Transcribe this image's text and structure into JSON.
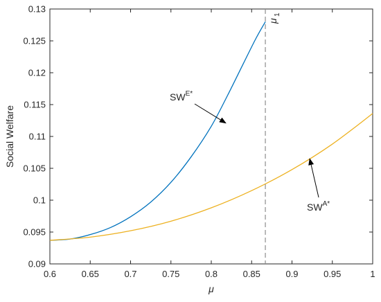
{
  "chart_data": {
    "type": "line",
    "xlabel": "μ",
    "ylabel": "Social Welfare",
    "xlim": [
      0.6,
      1.0
    ],
    "ylim": [
      0.09,
      0.13
    ],
    "xticks": [
      "0.6",
      "0.65",
      "0.7",
      "0.75",
      "0.8",
      "0.85",
      "0.9",
      "0.95",
      "1"
    ],
    "yticks": [
      "0.09",
      "0.095",
      "0.1",
      "0.105",
      "0.11",
      "0.115",
      "0.12",
      "0.125",
      "0.13"
    ],
    "grid": false,
    "box": true,
    "series": [
      {
        "name": "SW^{E*}",
        "color": "#0072BD",
        "x": [
          0.6,
          0.625,
          0.65,
          0.675,
          0.7,
          0.725,
          0.75,
          0.775,
          0.8,
          0.82,
          0.84,
          0.855,
          0.867
        ],
        "y": [
          0.0937,
          0.0939,
          0.0946,
          0.0957,
          0.0974,
          0.0997,
          0.1028,
          0.1068,
          0.1116,
          0.1164,
          0.1215,
          0.1253,
          0.128
        ]
      },
      {
        "name": "SW^{A*}",
        "color": "#EDB120",
        "x": [
          0.6,
          0.65,
          0.7,
          0.75,
          0.8,
          0.85,
          0.9,
          0.95,
          1.0
        ],
        "y": [
          0.0937,
          0.0942,
          0.0952,
          0.0967,
          0.0988,
          0.1015,
          0.1048,
          0.1088,
          0.1136
        ]
      }
    ],
    "vline": {
      "x": 0.867,
      "label": "μ",
      "label_sub": "1",
      "style": "dashed",
      "color": "#8c8c8c"
    },
    "annotations": [
      {
        "base": "SW",
        "sup": "E*",
        "arrow_to": [
          0.818,
          0.1121
        ]
      },
      {
        "base": "SW",
        "sup": "A*",
        "arrow_to": [
          0.922,
          0.1065
        ]
      }
    ]
  }
}
